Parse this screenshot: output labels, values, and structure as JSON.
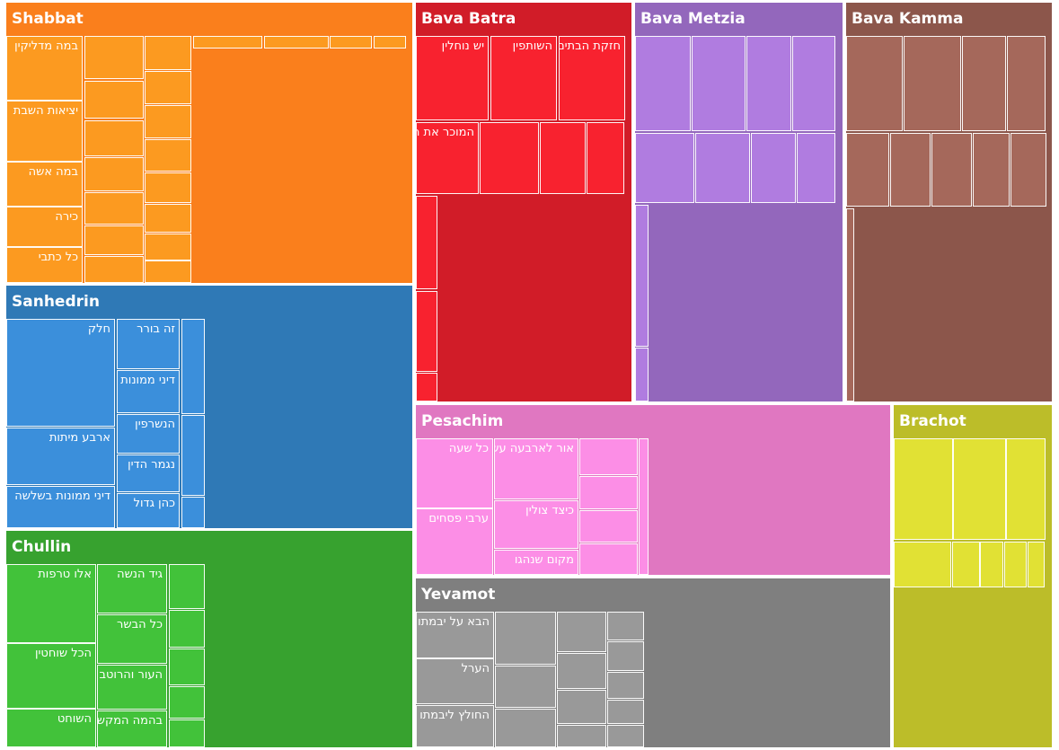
{
  "chart_data": {
    "type": "treemap",
    "groups": [
      {
        "name": "Shabbat",
        "color": "#fa7f1c",
        "cell_color": "#fc9a20",
        "children": [
          "במה מדליקין",
          "יציאות השבת",
          "במה אשה",
          "כירה",
          "כל כתבי",
          "",
          "",
          "",
          "",
          "",
          "",
          "",
          "",
          "",
          "",
          "",
          "",
          "",
          "",
          "",
          "",
          ""
        ]
      },
      {
        "name": "Bava Batra",
        "color": "#d11c28",
        "cell_color": "#f8222f",
        "children": [
          "יש נוחלין",
          "השותפין",
          "חזקת הבתים",
          "המוכר את הספינה",
          "",
          "",
          "",
          "",
          "",
          "",
          ""
        ]
      },
      {
        "name": "Bava Metzia",
        "color": "#9367bc",
        "cell_color": "#b07ce0",
        "children": [
          "",
          "",
          "",
          "",
          "",
          "",
          "",
          "",
          "",
          ""
        ]
      },
      {
        "name": "Bava Kamma",
        "color": "#8c564b",
        "cell_color": "#a5685b",
        "children": [
          "",
          "",
          "",
          "",
          "",
          "",
          "",
          "",
          "",
          ""
        ]
      },
      {
        "name": "Sanhedrin",
        "color": "#2f79b6",
        "cell_color": "#3b8fdb",
        "children": [
          "חלק",
          "ארבע מיתות",
          "דיני ממונות בשלשה",
          "זה בורר",
          "דיני ממונות",
          "הנשרפין",
          "נגמר הדין",
          "כהן גדול",
          "",
          "",
          ""
        ]
      },
      {
        "name": "Pesachim",
        "color": "#e077c1",
        "cell_color": "#fc8ee6",
        "children": [
          "כל שעה",
          "ערבי פסחים",
          "אור לארבעה עשר",
          "כיצד צולין",
          "מקום שנהגו",
          "",
          "",
          "",
          "",
          ""
        ]
      },
      {
        "name": "Chullin",
        "color": "#37a22f",
        "cell_color": "#42c23a",
        "children": [
          "אלו טרפות",
          "הכל שוחטין",
          "השוחט",
          "גיד הנשה",
          "כל הבשר",
          "העור והרוטב",
          "בהמה המקשה",
          "",
          "",
          "",
          "",
          ""
        ]
      },
      {
        "name": "Yevamot",
        "color": "#7f7f7f",
        "cell_color": "#999999",
        "children": [
          "הבא על יבמתו",
          "הערל",
          "החולץ ליבמתו",
          "",
          "",
          "",
          "",
          "",
          "",
          "",
          "",
          "",
          "",
          "",
          ""
        ]
      },
      {
        "name": "Brachot",
        "color": "#bcbd29",
        "cell_color": "#e1e134",
        "children": [
          "",
          "",
          "",
          "",
          "",
          "",
          "",
          ""
        ]
      }
    ]
  }
}
